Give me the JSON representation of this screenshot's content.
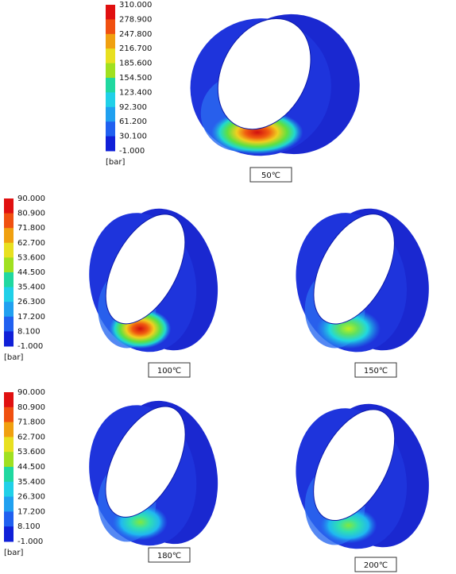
{
  "legends": [
    {
      "labels": [
        "310.000",
        "278.900",
        "247.800",
        "216.700",
        "185.600",
        "154.500",
        "123.400",
        "92.300",
        "61.200",
        "30.100",
        "-1.000"
      ],
      "unit": "[bar]"
    },
    {
      "labels": [
        "90.000",
        "80.900",
        "71.800",
        "62.700",
        "53.600",
        "44.500",
        "35.400",
        "26.300",
        "17.200",
        "8.100",
        "-1.000"
      ],
      "unit": "[bar]"
    },
    {
      "labels": [
        "90.000",
        "80.900",
        "71.800",
        "62.700",
        "53.600",
        "44.500",
        "35.400",
        "26.300",
        "17.200",
        "8.100",
        "-1.000"
      ],
      "unit": "[bar]"
    }
  ],
  "panels": [
    {
      "caption": "50℃"
    },
    {
      "caption": "100℃"
    },
    {
      "caption": "150℃"
    },
    {
      "caption": "180℃"
    },
    {
      "caption": "200℃"
    }
  ]
}
